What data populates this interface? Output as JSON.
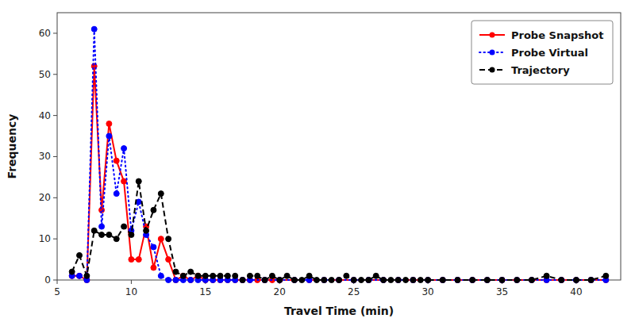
{
  "chart_data": {
    "type": "line",
    "xlabel": "Travel Time (min)",
    "ylabel": "Frequency",
    "xlim": [
      5,
      43
    ],
    "ylim": [
      0,
      65
    ],
    "xticks": [
      5,
      10,
      15,
      20,
      25,
      30,
      35,
      40
    ],
    "yticks": [
      0,
      10,
      20,
      30,
      40,
      50,
      60
    ],
    "grid": false,
    "legend": "upper right",
    "series": [
      {
        "name": "Probe Snapshot",
        "color": "red",
        "line_style": "solid",
        "marker": "circle",
        "x": [
          6.0,
          6.5,
          7.0,
          7.5,
          8.0,
          8.5,
          9.0,
          9.5,
          10.0,
          10.5,
          11.0,
          11.5,
          12.0,
          12.5,
          13.0,
          13.5,
          14.0,
          14.5,
          15.0,
          15.5,
          16.0,
          16.5,
          17.0,
          17.5,
          18.0,
          18.5,
          19.0,
          19.5,
          20.0,
          21.0,
          22.0,
          23.0,
          24.0,
          25.0,
          26.0,
          27.0,
          28.0,
          29.0,
          30.0,
          31.0,
          32.0,
          33.0,
          34.0,
          35.0,
          36.0,
          37.0,
          38.0,
          39.0,
          40.0,
          41.0,
          42.0
        ],
        "values": [
          1,
          1,
          0,
          52,
          17,
          38,
          29,
          24,
          5,
          5,
          13,
          3,
          10,
          5,
          0,
          1,
          0,
          1,
          0,
          0,
          0,
          0,
          0,
          0,
          0,
          0,
          0,
          0,
          0,
          0,
          0,
          0,
          0,
          0,
          0,
          0,
          0,
          0,
          0,
          0,
          0,
          0,
          0,
          0,
          0,
          0,
          0,
          0,
          0,
          0,
          0
        ]
      },
      {
        "name": "Probe Virtual",
        "color": "blue",
        "line_style": "dotted",
        "marker": "circle",
        "x": [
          6.0,
          6.5,
          7.0,
          7.5,
          8.0,
          8.5,
          9.0,
          9.5,
          10.0,
          10.5,
          11.0,
          11.5,
          12.0,
          12.5,
          13.0,
          13.5,
          14.0,
          14.5,
          15.0,
          15.5,
          16.0,
          16.5,
          17.0,
          17.5,
          18.0,
          19.0,
          20.0,
          21.0,
          22.0,
          23.0,
          24.0,
          25.0,
          26.0,
          27.0,
          28.0,
          29.0,
          30.0,
          31.0,
          32.0,
          33.0,
          34.0,
          35.0,
          36.0,
          37.0,
          38.0,
          39.0,
          40.0,
          41.0,
          42.0
        ],
        "values": [
          1,
          1,
          0,
          61,
          13,
          35,
          21,
          32,
          12,
          19,
          11,
          8,
          1,
          0,
          0,
          0,
          0,
          0,
          0,
          0,
          0,
          0,
          0,
          0,
          0,
          0,
          0,
          0,
          0,
          0,
          0,
          0,
          0,
          0,
          0,
          0,
          0,
          0,
          0,
          0,
          0,
          0,
          0,
          0,
          0,
          0,
          0,
          0,
          0
        ]
      },
      {
        "name": "Trajectory",
        "color": "black",
        "line_style": "dashed",
        "marker": "circle",
        "x": [
          6.0,
          6.5,
          7.0,
          7.5,
          8.0,
          8.5,
          9.0,
          9.5,
          10.0,
          10.5,
          11.0,
          11.5,
          12.0,
          12.5,
          13.0,
          13.5,
          14.0,
          14.5,
          15.0,
          15.5,
          16.0,
          16.5,
          17.0,
          17.5,
          18.0,
          18.5,
          19.0,
          19.5,
          20.0,
          20.5,
          21.0,
          21.5,
          22.0,
          22.5,
          23.0,
          23.5,
          24.0,
          24.5,
          25.0,
          25.5,
          26.0,
          26.5,
          27.0,
          27.5,
          28.0,
          28.5,
          29.0,
          29.5,
          30.0,
          31.0,
          32.0,
          33.0,
          34.0,
          35.0,
          36.0,
          37.0,
          38.0,
          39.0,
          40.0,
          41.0,
          42.0
        ],
        "values": [
          2,
          6,
          1,
          12,
          11,
          11,
          10,
          13,
          11,
          24,
          12,
          17,
          21,
          10,
          2,
          1,
          2,
          1,
          1,
          1,
          1,
          1,
          1,
          0,
          1,
          1,
          0,
          1,
          0,
          1,
          0,
          0,
          1,
          0,
          0,
          0,
          0,
          1,
          0,
          0,
          0,
          1,
          0,
          0,
          0,
          0,
          0,
          0,
          0,
          0,
          0,
          0,
          0,
          0,
          0,
          0,
          1,
          0,
          0,
          0,
          1
        ]
      }
    ]
  }
}
